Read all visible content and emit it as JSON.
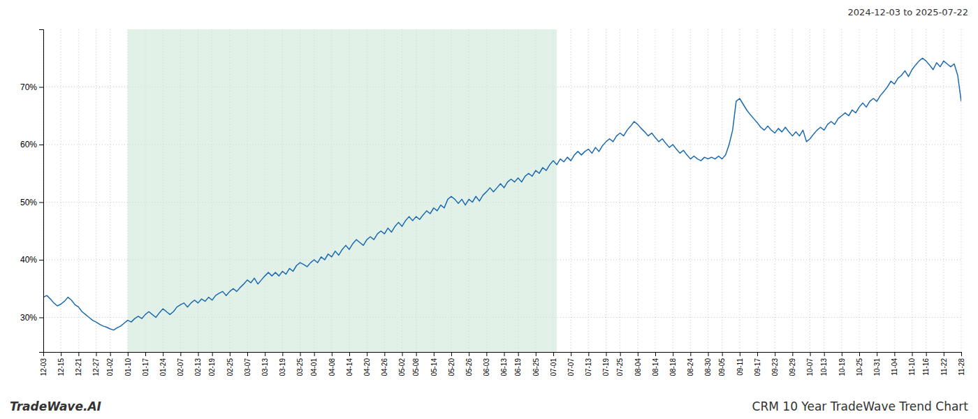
{
  "chart_data": {
    "type": "line",
    "title": "CRM 10 Year TradeWave Trend Chart",
    "subtitle": "2024-12-03 to 2025-07-22",
    "annotations": [
      "TradeWave.AI"
    ],
    "color": "#1b6ab0",
    "grid": true,
    "ylim": [
      24,
      80
    ],
    "yticks": [
      {
        "value": 30,
        "label": "30%"
      },
      {
        "value": 40,
        "label": "40%"
      },
      {
        "value": 50,
        "label": "50%"
      },
      {
        "value": 60,
        "label": "60%"
      },
      {
        "value": 70,
        "label": "70%"
      }
    ],
    "shaded_region": {
      "start": 24,
      "end": 146,
      "color": "#c8e6d4"
    },
    "categories": [
      "12-03",
      null,
      null,
      null,
      null,
      "12-15",
      null,
      null,
      null,
      null,
      "12-21",
      null,
      null,
      null,
      null,
      "12-27",
      null,
      null,
      null,
      "01-02",
      null,
      null,
      null,
      null,
      "01-10",
      null,
      null,
      null,
      null,
      "01-17",
      null,
      null,
      null,
      null,
      "01-24",
      null,
      null,
      null,
      null,
      "02-07",
      null,
      null,
      null,
      null,
      "02-13",
      null,
      null,
      null,
      "02-19",
      null,
      null,
      null,
      null,
      "02-25",
      null,
      null,
      null,
      null,
      "03-07",
      null,
      null,
      null,
      null,
      "03-13",
      null,
      null,
      null,
      null,
      "03-19",
      null,
      null,
      null,
      null,
      "03-25",
      null,
      null,
      null,
      "04-01",
      null,
      null,
      null,
      null,
      "04-08",
      null,
      null,
      null,
      null,
      "04-14",
      null,
      null,
      null,
      null,
      "04-20",
      null,
      null,
      null,
      null,
      "04-26",
      null,
      null,
      null,
      null,
      "05-02",
      null,
      null,
      null,
      "05-08",
      null,
      null,
      null,
      null,
      "05-14",
      null,
      null,
      null,
      null,
      "05-20",
      null,
      null,
      null,
      null,
      "05-26",
      null,
      null,
      null,
      null,
      "06-03",
      null,
      null,
      null,
      null,
      "06-13",
      null,
      null,
      null,
      "06-19",
      null,
      null,
      null,
      null,
      "06-25",
      null,
      null,
      null,
      null,
      "07-01",
      null,
      null,
      null,
      null,
      "07-07",
      null,
      null,
      null,
      null,
      "07-13",
      null,
      null,
      null,
      null,
      "07-19",
      null,
      null,
      null,
      "07-25",
      null,
      null,
      null,
      null,
      "08-04",
      null,
      null,
      null,
      null,
      "08-14",
      null,
      null,
      null,
      null,
      "08-18",
      null,
      null,
      null,
      null,
      "08-24",
      null,
      null,
      null,
      null,
      "08-30",
      null,
      null,
      null,
      "09-05",
      null,
      null,
      null,
      null,
      "09-11",
      null,
      null,
      null,
      null,
      "09-17",
      null,
      null,
      null,
      null,
      "09-23",
      null,
      null,
      null,
      null,
      "09-29",
      null,
      null,
      null,
      null,
      "10-07",
      null,
      null,
      null,
      "10-13",
      null,
      null,
      null,
      null,
      "10-19",
      null,
      null,
      null,
      null,
      "10-25",
      null,
      null,
      null,
      null,
      "10-31",
      null,
      null,
      null,
      null,
      "11-04",
      null,
      null,
      null,
      null,
      "11-10",
      null,
      null,
      null,
      "11-16",
      null,
      null,
      null,
      null,
      "11-22",
      null,
      null,
      null,
      null,
      "11-28"
    ],
    "values": [
      33.5,
      33.8,
      33.2,
      32.5,
      32.0,
      32.3,
      32.8,
      33.5,
      33.0,
      32.2,
      31.8,
      31.0,
      30.5,
      30.0,
      29.5,
      29.2,
      28.8,
      28.5,
      28.3,
      28.0,
      27.8,
      28.2,
      28.5,
      29.0,
      29.5,
      29.2,
      29.8,
      30.2,
      29.8,
      30.5,
      31.0,
      30.5,
      30.0,
      30.8,
      31.5,
      31.0,
      30.5,
      31.0,
      31.8,
      32.2,
      32.5,
      31.8,
      32.5,
      33.0,
      32.5,
      33.2,
      32.8,
      33.5,
      33.0,
      33.8,
      34.2,
      34.5,
      33.8,
      34.5,
      35.0,
      34.5,
      35.2,
      35.8,
      36.5,
      36.0,
      36.8,
      35.8,
      36.5,
      37.2,
      37.8,
      37.2,
      37.8,
      37.2,
      38.0,
      37.5,
      38.5,
      38.0,
      39.0,
      39.5,
      39.2,
      38.8,
      39.5,
      40.0,
      39.5,
      40.5,
      40.0,
      41.0,
      40.5,
      41.5,
      40.8,
      41.8,
      42.5,
      41.8,
      42.8,
      43.5,
      43.0,
      42.5,
      43.5,
      44.0,
      43.5,
      44.5,
      45.0,
      44.5,
      45.5,
      44.8,
      45.8,
      46.5,
      45.8,
      46.8,
      47.5,
      46.8,
      47.5,
      47.0,
      47.8,
      48.5,
      48.0,
      49.0,
      48.5,
      49.5,
      49.0,
      50.5,
      51.0,
      50.5,
      49.8,
      50.5,
      49.5,
      50.5,
      50.0,
      51.0,
      50.2,
      51.2,
      51.8,
      52.5,
      51.8,
      52.5,
      53.2,
      52.5,
      53.5,
      54.0,
      53.5,
      54.2,
      53.5,
      54.5,
      55.0,
      54.5,
      55.5,
      55.0,
      56.0,
      55.5,
      56.5,
      57.2,
      56.5,
      57.5,
      57.0,
      57.8,
      57.2,
      58.2,
      58.8,
      58.2,
      58.8,
      59.2,
      58.5,
      59.5,
      58.8,
      59.8,
      60.5,
      61.0,
      60.5,
      61.5,
      62.0,
      61.5,
      62.5,
      63.2,
      64.0,
      63.5,
      62.8,
      62.2,
      61.5,
      62.0,
      61.2,
      60.5,
      61.0,
      60.2,
      59.5,
      60.0,
      59.2,
      58.5,
      59.0,
      58.2,
      57.5,
      58.0,
      57.5,
      57.2,
      57.8,
      57.5,
      57.8,
      57.5,
      58.0,
      57.5,
      58.2,
      60.0,
      62.5,
      67.5,
      68.0,
      67.0,
      66.0,
      65.2,
      64.5,
      63.8,
      63.0,
      62.5,
      63.2,
      62.5,
      62.0,
      62.8,
      62.2,
      63.0,
      62.2,
      61.5,
      62.2,
      61.5,
      62.5,
      60.5,
      61.0,
      61.8,
      62.5,
      63.0,
      62.5,
      63.5,
      64.0,
      63.5,
      64.5,
      65.0,
      65.5,
      65.0,
      66.0,
      65.5,
      66.5,
      67.2,
      66.5,
      67.5,
      68.0,
      67.5,
      68.5,
      69.2,
      70.0,
      71.0,
      70.5,
      71.5,
      72.0,
      72.8,
      71.8,
      73.0,
      73.8,
      74.5,
      75.0,
      74.5,
      73.8,
      73.0,
      74.2,
      73.5,
      74.5,
      74.0,
      73.5,
      74.0,
      72.0,
      67.5
    ]
  }
}
